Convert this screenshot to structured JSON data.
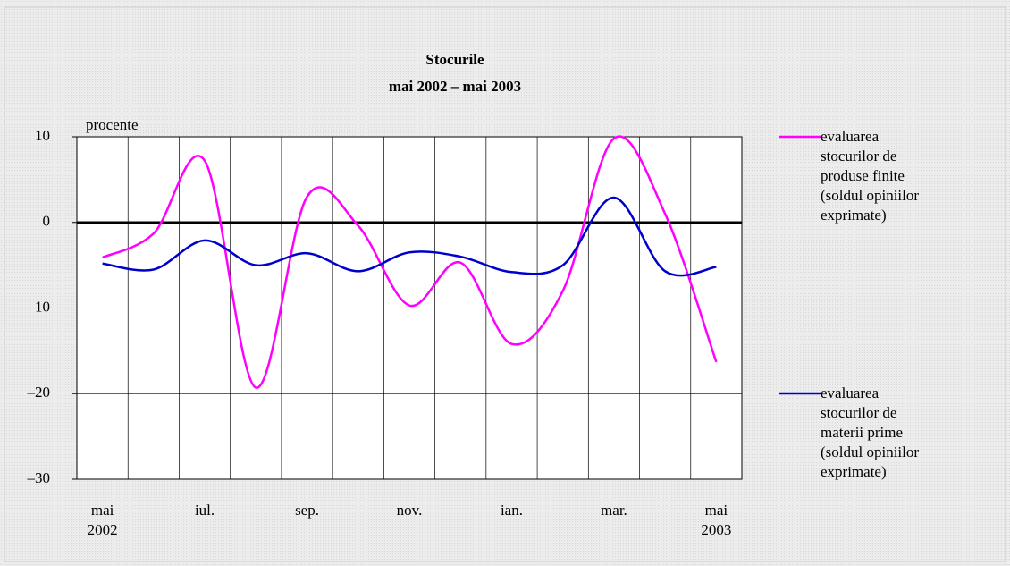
{
  "chart_data": {
    "type": "line",
    "title": "Stocurile",
    "subtitle": "mai 2002 – mai 2003",
    "y_label": "procente",
    "categories": [
      "mai 2002",
      null,
      "iul.",
      null,
      "sep.",
      null,
      "nov.",
      null,
      "ian.",
      null,
      "mar.",
      null,
      "mai 2003"
    ],
    "series": [
      {
        "name": "evaluarea stocurilor de produse finite (soldul opiniilor exprimate)",
        "color": "#ff00ff",
        "values": [
          -4.1,
          -1.3,
          7.2,
          -19.3,
          3,
          -0.4,
          -9.7,
          -4.7,
          -14.2,
          -8,
          9.8,
          1,
          -16.3
        ]
      },
      {
        "name": "evaluarea stocurilor de materii prime (soldul opiniilor exprimate)",
        "color": "#0000cc",
        "values": [
          -4.8,
          -5.5,
          -2.1,
          -5,
          -3.6,
          -5.7,
          -3.5,
          -4,
          -5.8,
          -5,
          2.9,
          -5.7,
          -5.2
        ]
      }
    ],
    "ylim": [
      -30,
      10
    ],
    "yticks": [
      {
        "value": -30,
        "label": "–30"
      },
      {
        "value": -20,
        "label": "–20"
      },
      {
        "value": -10,
        "label": "–10"
      },
      0,
      10
    ],
    "grid": true
  }
}
